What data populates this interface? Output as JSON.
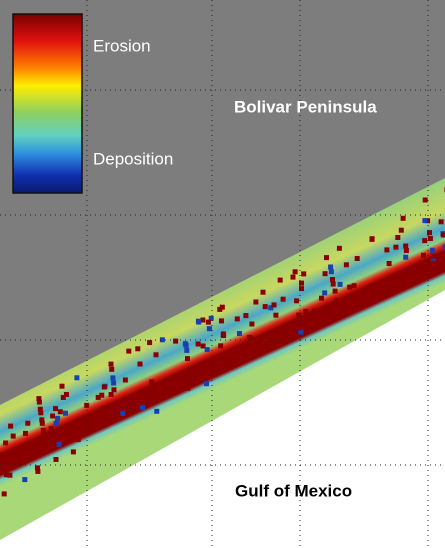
{
  "legend": {
    "high_label": "Erosion",
    "low_label": "Deposition"
  },
  "labels": {
    "land": "Bolivar Peninsula",
    "water": "Gulf of Mexico"
  }
}
